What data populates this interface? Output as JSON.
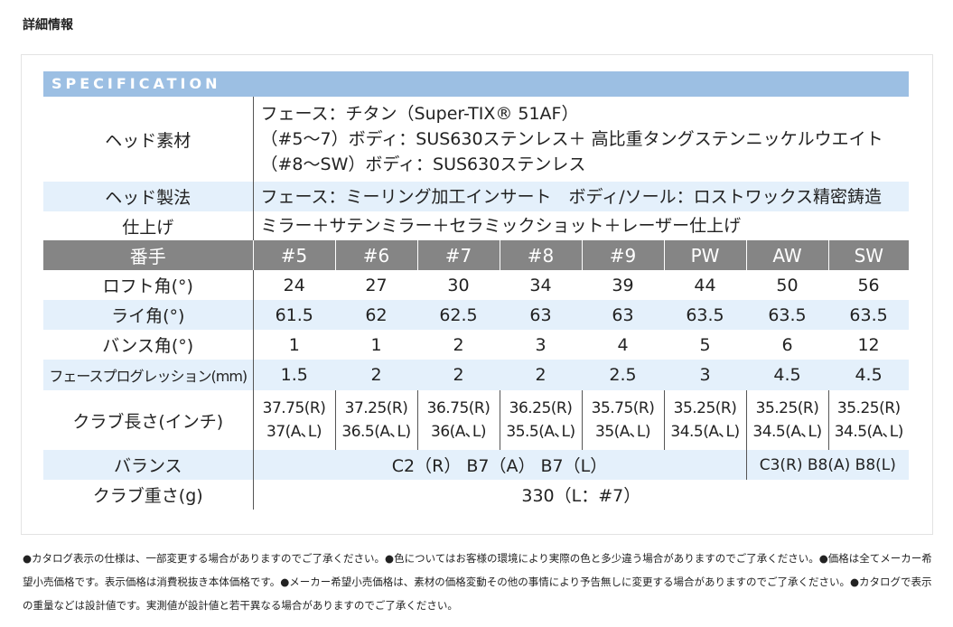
{
  "page_title": "詳細情報",
  "spec_header": "SPECIFICATION",
  "head_material": {
    "label": "ヘッド素材",
    "lines": [
      "フェース：チタン（Super-TIX® 51AF）",
      "（#5〜7）ボディ：SUS630ステンレス＋ 高比重タングステンニッケルウエイト",
      "（#8〜SW）ボディ：SUS630ステンレス"
    ]
  },
  "head_method": {
    "label": "ヘッド製法",
    "value": "フェース：ミーリング加工インサート　ボディ/ソール：ロストワックス精密鋳造"
  },
  "finish": {
    "label": "仕上げ",
    "value": "ミラー＋サテンミラー＋セラミックショット＋レーザー仕上げ"
  },
  "columns": {
    "label": "番手",
    "items": [
      "#5",
      "#6",
      "#7",
      "#8",
      "#9",
      "PW",
      "AW",
      "SW"
    ]
  },
  "loft": {
    "label": "ロフト角(°)",
    "values": [
      "24",
      "27",
      "30",
      "34",
      "39",
      "44",
      "50",
      "56"
    ]
  },
  "lie": {
    "label": "ライ角(°)",
    "values": [
      "61.5",
      "62",
      "62.5",
      "63",
      "63",
      "63.5",
      "63.5",
      "63.5"
    ]
  },
  "bounce": {
    "label": "バンス角(°)",
    "values": [
      "1",
      "1",
      "2",
      "3",
      "4",
      "5",
      "6",
      "12"
    ]
  },
  "progression": {
    "label": "フェースプログレッション(mm)",
    "values": [
      "1.5",
      "2",
      "2",
      "2",
      "2.5",
      "3",
      "4.5",
      "4.5"
    ]
  },
  "club_length": {
    "label": "クラブ長さ(インチ)",
    "r_values": [
      "37.75(R)",
      "37.25(R)",
      "36.75(R)",
      "36.25(R)",
      "35.75(R)",
      "35.25(R)",
      "35.25(R)",
      "35.25(R)"
    ],
    "al_values": [
      "37(A､L)",
      "36.5(A､L)",
      "36(A､L)",
      "35.5(A､L)",
      "35(A､L)",
      "34.5(A､L)",
      "34.5(A､L)",
      "34.5(A､L)"
    ]
  },
  "balance": {
    "label": "バランス",
    "value_main": "C2（R） B7（A） B7（L）",
    "value_wedge": "C3(R) B8(A) B8(L)"
  },
  "weight": {
    "label": "クラブ重さ(g)",
    "value": "330（L：#7）"
  },
  "notes": "●カタログ表示の仕様は、一部変更する場合がありますのでご了承ください。●色についてはお客様の環境により実際の色と多少違う場合がありますのでご了承ください。●価格は全てメーカー希望小売価格です。表示価格は消費税抜き本体価格です。●メーカー希望小売価格は、素材の価格変動その他の事情により予告無しに変更する場合がありますのでご了承ください。●カタログで表示の重量などは設計値です。実測値が設計値と若干異なる場合がありますのでご了承ください。"
}
